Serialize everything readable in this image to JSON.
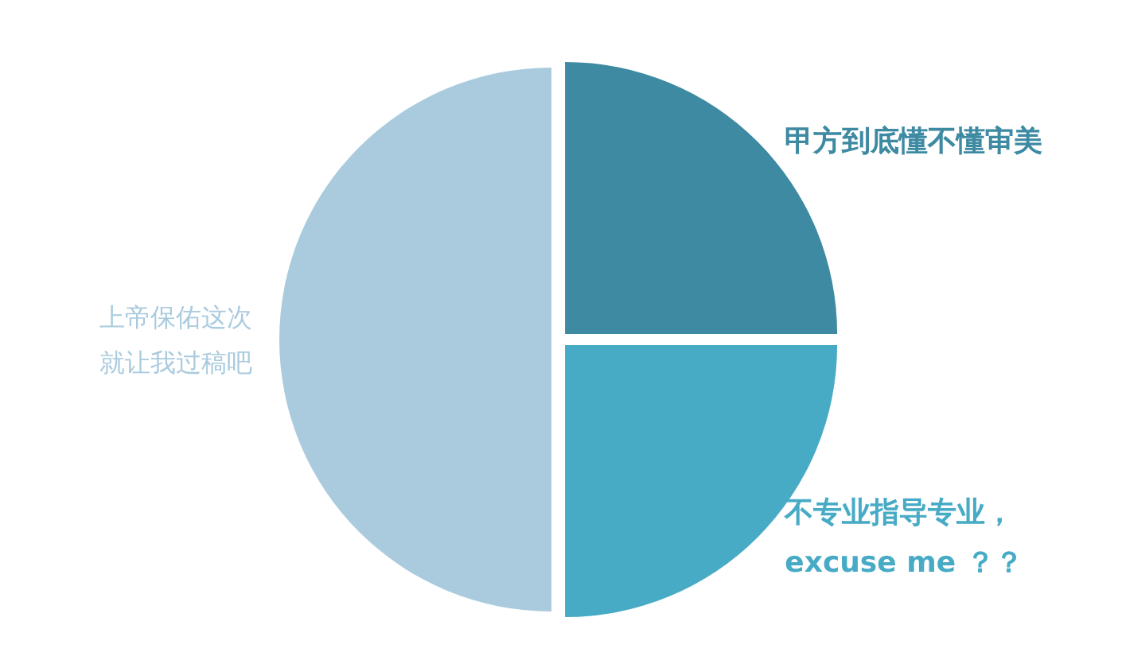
{
  "chart_data": {
    "type": "pie",
    "categories": [
      "甲方到底懂不懂审美",
      "不专业指导专业，excuse me ？？",
      "上帝保佑这次就让我过稿吧"
    ],
    "values": [
      25,
      25,
      50
    ],
    "colors": [
      "#3d8aa2",
      "#48abc6",
      "#aacbde"
    ]
  }
}
